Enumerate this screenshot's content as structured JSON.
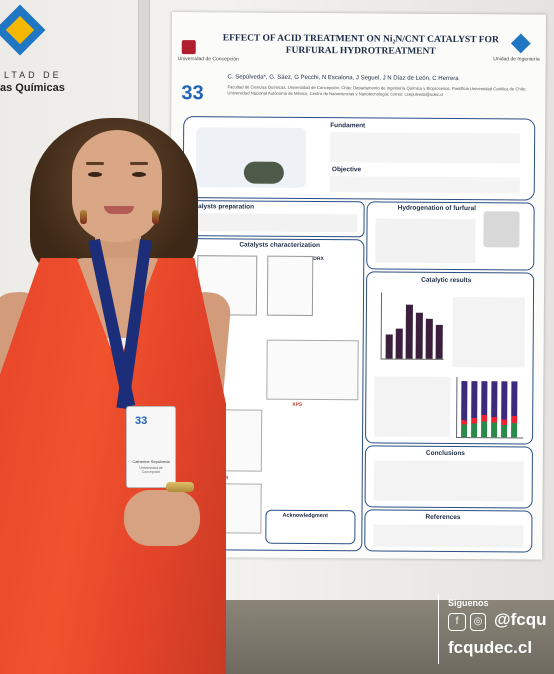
{
  "logo": {
    "line1": "LTAD DE",
    "line2": "as Químicas"
  },
  "poster": {
    "title": "EFFECT OF ACID TREATMENT ON Ni₂N/CNT CATALYST FOR FURFURAL HYDROTREATMENT",
    "badge": "33",
    "left_logo_text": "Universidad de Concepción",
    "right_logo_text": "Unidad de Ingeniería",
    "authors": "C. Sepúlveda*, G. Sáez, G Pecchi, N Escalona, J Seguel, J N Díaz de León, C Herrera",
    "affiliations": "Facultad de Ciencias Químicas, Universidad de Concepción, Chile; Departamento de Ingeniería Química y Bioprocesos, Pontificia Universidad Católica de Chile; Universidad Nacional Autónoma de México, Centro de Nanociencias y Nanotecnología; correo: csepulveda@udec.cl",
    "sections": {
      "fundament": "Fundament",
      "objective": "Objective",
      "catalysts_preparation": "Catalysts preparation",
      "catalysts_characterization": "Catalysts characterization",
      "hydrogenation": "Hydrogenation of furfural",
      "catalytic_results": "Catalytic results",
      "conclusions": "Conclusions",
      "references": "References",
      "acknowledgment": "Acknowledgment",
      "xps": "XPS",
      "ftir": "FT-IR",
      "drx": "DRX"
    }
  },
  "badge": {
    "logo": "33",
    "name": "Catherine Sepúlveda",
    "sub": "Universidad de Concepción"
  },
  "overlay": {
    "follow": "Síguenos",
    "handle": "@fcqu",
    "website": "fcqudec.cl"
  },
  "colors": {
    "dress": "#e9452a",
    "lanyard": "#1c2e7a",
    "poster_border": "#2a4f86",
    "accent_blue": "#1f76c2",
    "accent_yellow": "#f5b800"
  }
}
